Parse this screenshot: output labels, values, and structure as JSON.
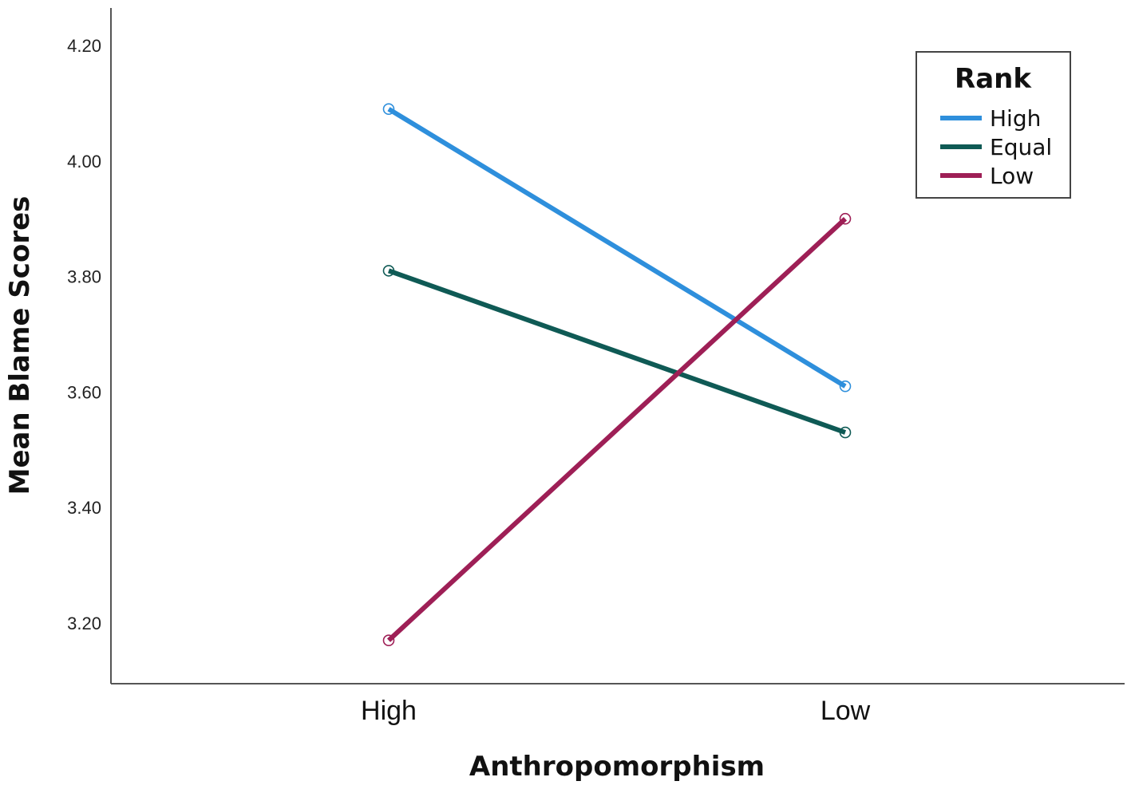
{
  "chart_data": {
    "type": "line",
    "title": "",
    "xlabel": "Anthropomorphism",
    "ylabel": "Mean Blame Scores",
    "categories": [
      "High",
      "Low"
    ],
    "ylim": [
      3.095,
      4.265
    ],
    "yticks": [
      "3.20",
      "3.40",
      "3.60",
      "3.80",
      "4.00",
      "4.20"
    ],
    "grid": false,
    "legend": {
      "title": "Rank",
      "placement": "top-right"
    },
    "series": [
      {
        "name": "High",
        "values": [
          4.09,
          3.61
        ],
        "color": "#2e8fdc"
      },
      {
        "name": "Equal",
        "values": [
          3.81,
          3.53
        ],
        "color": "#0f5a55"
      },
      {
        "name": "Low",
        "values": [
          3.17,
          3.9
        ],
        "color": "#9e1f56"
      }
    ]
  }
}
